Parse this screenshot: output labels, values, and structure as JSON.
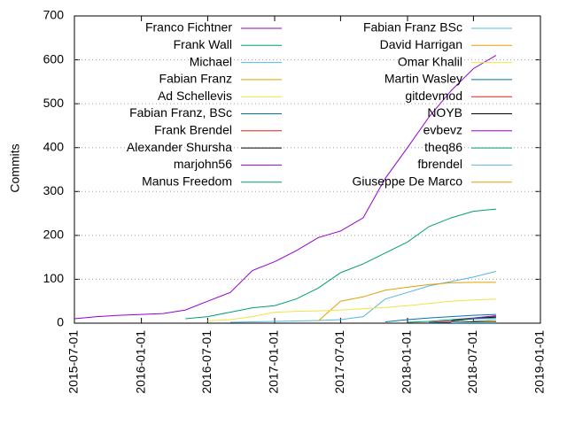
{
  "chart_data": {
    "type": "line",
    "y_label": "Commits",
    "x": [
      "2015-07-01",
      "2015-09-01",
      "2015-11-01",
      "2016-01-01",
      "2016-03-01",
      "2016-05-01",
      "2016-07-01",
      "2016-09-01",
      "2016-11-01",
      "2017-01-01",
      "2017-03-01",
      "2017-05-01",
      "2017-07-01",
      "2017-09-01",
      "2017-11-01",
      "2018-01-01",
      "2018-03-01",
      "2018-05-01",
      "2018-07-01",
      "2018-09-01"
    ],
    "xlim": [
      "2015-07-01",
      "2019-01-01"
    ],
    "xticks": [
      "2015-07-01",
      "2016-01-01",
      "2016-07-01",
      "2017-01-01",
      "2017-07-01",
      "2018-01-01",
      "2018-07-01",
      "2019-01-01"
    ],
    "ylim": [
      0,
      700
    ],
    "yticks": [
      0,
      100,
      200,
      300,
      400,
      500,
      600,
      700
    ],
    "grid": true,
    "legend": "top-left",
    "series": [
      {
        "name": "Franco Fichtner",
        "color": "#9400d3",
        "values": [
          10,
          15,
          18,
          20,
          22,
          30,
          50,
          70,
          120,
          140,
          165,
          195,
          210,
          240,
          330,
          400,
          470,
          530,
          580,
          610
        ]
      },
      {
        "name": "Frank Wall",
        "color": "#009e73",
        "values": [
          null,
          null,
          null,
          null,
          null,
          10,
          15,
          25,
          35,
          40,
          55,
          80,
          115,
          135,
          160,
          185,
          220,
          240,
          255,
          260
        ]
      },
      {
        "name": "Michael",
        "color": "#56b4e9",
        "values": [
          null,
          null,
          null,
          null,
          null,
          null,
          null,
          2,
          3,
          4,
          5,
          6,
          8,
          15,
          55,
          70,
          85,
          95,
          105,
          118
        ]
      },
      {
        "name": "Fabian Franz",
        "color": "#e69f00",
        "values": [
          null,
          null,
          null,
          null,
          null,
          null,
          null,
          null,
          null,
          null,
          null,
          5,
          50,
          60,
          75,
          82,
          88,
          92,
          93,
          93
        ]
      },
      {
        "name": "Ad Schellevis",
        "color": "#f0e442",
        "values": [
          null,
          null,
          null,
          null,
          null,
          null,
          5,
          8,
          15,
          25,
          27,
          28,
          30,
          33,
          36,
          40,
          45,
          50,
          53,
          55
        ]
      },
      {
        "name": "Fabian Franz, BSc",
        "color": "#0072b2",
        "values": [
          null,
          null,
          null,
          null,
          null,
          null,
          null,
          null,
          null,
          null,
          null,
          null,
          null,
          null,
          3,
          8,
          12,
          15,
          18,
          20
        ]
      },
      {
        "name": "Frank Brendel",
        "color": "#e51e10",
        "values": [
          null,
          null,
          null,
          null,
          null,
          null,
          null,
          null,
          null,
          null,
          null,
          null,
          null,
          null,
          null,
          null,
          2,
          5,
          10,
          15
        ]
      },
      {
        "name": "Alexander Shursha",
        "color": "#000000",
        "values": [
          null,
          null,
          null,
          null,
          null,
          null,
          null,
          null,
          null,
          null,
          null,
          null,
          null,
          null,
          null,
          null,
          null,
          5,
          10,
          14
        ]
      },
      {
        "name": "marjohn56",
        "color": "#9400d3",
        "values": [
          null,
          null,
          null,
          null,
          null,
          null,
          null,
          null,
          null,
          null,
          null,
          null,
          null,
          null,
          null,
          null,
          null,
          8,
          12,
          17
        ]
      },
      {
        "name": "Manus Freedom",
        "color": "#009e73",
        "values": [
          null,
          null,
          null,
          null,
          null,
          null,
          null,
          null,
          null,
          null,
          null,
          null,
          null,
          null,
          null,
          2,
          4,
          8,
          10,
          12
        ]
      },
      {
        "name": "Fabian Franz BSc",
        "color": "#56b4e9",
        "values": [
          null,
          null,
          null,
          null,
          null,
          null,
          null,
          null,
          null,
          null,
          null,
          null,
          null,
          null,
          null,
          null,
          null,
          null,
          5,
          8
        ]
      },
      {
        "name": "David Harrigan",
        "color": "#e69f00",
        "values": [
          null,
          null,
          null,
          null,
          null,
          null,
          null,
          null,
          null,
          null,
          null,
          null,
          null,
          null,
          null,
          null,
          null,
          2,
          4,
          5
        ]
      },
      {
        "name": "Omar Khalil",
        "color": "#f0e442",
        "values": [
          null,
          null,
          null,
          null,
          null,
          null,
          null,
          null,
          null,
          null,
          null,
          null,
          null,
          null,
          null,
          null,
          null,
          null,
          3,
          4
        ]
      },
      {
        "name": "Martin Wasley",
        "color": "#0072b2",
        "values": [
          null,
          null,
          null,
          null,
          null,
          null,
          null,
          null,
          null,
          null,
          null,
          null,
          null,
          null,
          null,
          null,
          1,
          2,
          3,
          3
        ]
      },
      {
        "name": "gitdevmod",
        "color": "#e51e10",
        "values": [
          null,
          null,
          null,
          null,
          null,
          null,
          null,
          null,
          null,
          null,
          null,
          null,
          null,
          null,
          null,
          null,
          null,
          null,
          2,
          3
        ]
      },
      {
        "name": "NOYB",
        "color": "#000000",
        "values": [
          null,
          null,
          null,
          null,
          null,
          null,
          null,
          null,
          null,
          null,
          null,
          null,
          null,
          null,
          null,
          null,
          null,
          1,
          2,
          2
        ]
      },
      {
        "name": "evbevz",
        "color": "#9400d3",
        "values": [
          null,
          null,
          null,
          null,
          null,
          null,
          null,
          null,
          null,
          null,
          null,
          null,
          null,
          null,
          null,
          null,
          null,
          null,
          1,
          2
        ]
      },
      {
        "name": "theq86",
        "color": "#009e73",
        "values": [
          null,
          null,
          null,
          null,
          null,
          null,
          null,
          null,
          null,
          null,
          null,
          null,
          null,
          null,
          null,
          null,
          null,
          null,
          1,
          2
        ]
      },
      {
        "name": "fbrendel",
        "color": "#56b4e9",
        "values": [
          null,
          null,
          null,
          null,
          null,
          null,
          null,
          null,
          null,
          null,
          null,
          null,
          null,
          null,
          null,
          null,
          null,
          1,
          1,
          1
        ]
      },
      {
        "name": "Giuseppe De Marco",
        "color": "#e69f00",
        "values": [
          null,
          null,
          null,
          null,
          null,
          null,
          null,
          null,
          null,
          null,
          null,
          null,
          null,
          null,
          null,
          null,
          null,
          null,
          null,
          1
        ]
      }
    ]
  }
}
